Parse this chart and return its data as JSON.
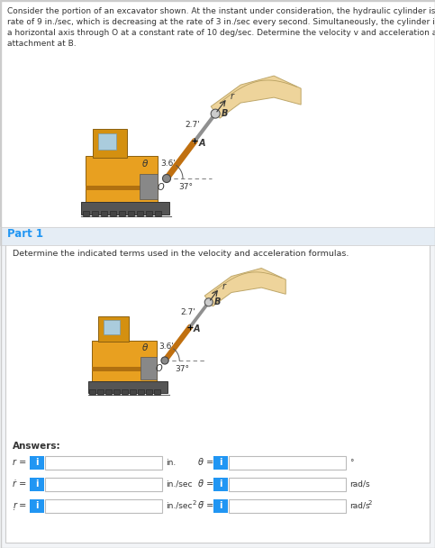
{
  "problem_text_lines": [
    "Consider the portion of an excavator shown. At the instant under consideration, the hydraulic cylinder is extending at a",
    "rate of 9 in./sec, which is decreasing at the rate of 3 in./sec every second. Simultaneously, the cylinder is rotating about",
    "a horizontal axis through O at a constant rate of 10 deg/sec. Determine the velocity v and acceleration a of the clevis",
    "attachment at B."
  ],
  "part1_label": "Part 1",
  "part1_instruction": "Determine the indicated terms used in the velocity and acceleration formulas.",
  "answers_label": "Answers:",
  "blue_btn": "#2196f3",
  "box_border": "#bbbbbb",
  "text_color": "#333333",
  "part1_color": "#2196f3",
  "bg_white": "#ffffff",
  "bg_gray": "#f2f4f7",
  "separator_color": "#cccccc",
  "excavator_yellow": "#E8A020",
  "excavator_dark": "#C07010",
  "boom_tan": "#EDD090",
  "track_gray": "#555555"
}
